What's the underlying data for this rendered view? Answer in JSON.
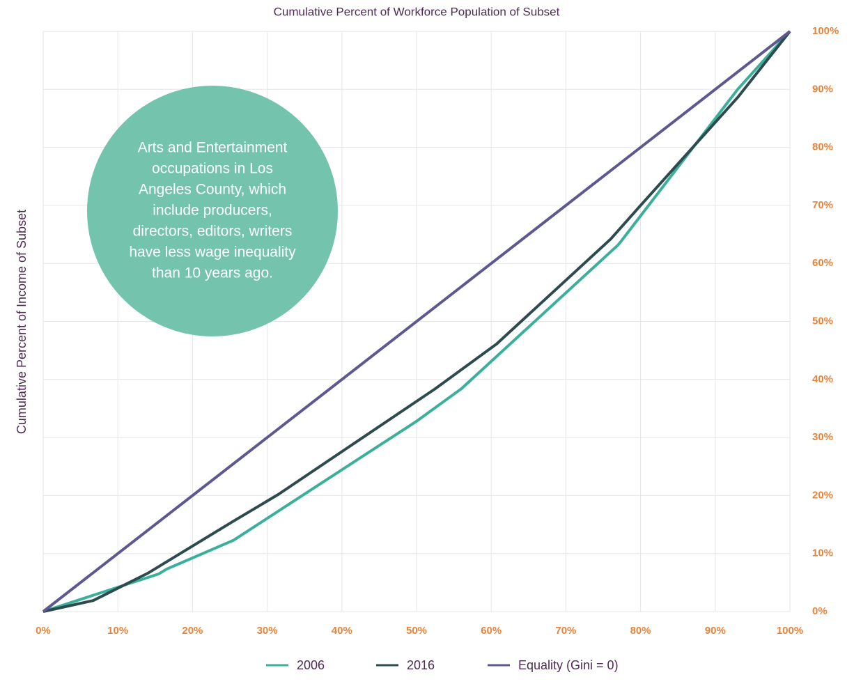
{
  "chart_data": {
    "type": "line",
    "title": "Cumulative Percent of Workforce Population of Subset",
    "y_label": "Cumulative Percent of Income of Subset",
    "annotation": [
      "Arts and Entertainment",
      "occupations in Los",
      "Angeles County, which",
      "include producers,",
      "directors, editors, writers",
      "have less wage inequality",
      "than 10 years ago."
    ],
    "annotation_color": "#74c3ad",
    "xlim": [
      0,
      100
    ],
    "ylim": [
      0,
      100
    ],
    "xticks": [
      {
        "value": 0,
        "label": "0%"
      },
      {
        "value": 10,
        "label": "10%"
      },
      {
        "value": 20,
        "label": "20%"
      },
      {
        "value": 30,
        "label": "30%"
      },
      {
        "value": 40,
        "label": "40%"
      },
      {
        "value": 50,
        "label": "50%"
      },
      {
        "value": 60,
        "label": "60%"
      },
      {
        "value": 70,
        "label": "70%"
      },
      {
        "value": 80,
        "label": "80%"
      },
      {
        "value": 90,
        "label": "90%"
      },
      {
        "value": 100,
        "label": "100%"
      }
    ],
    "yticks": [
      {
        "value": 0,
        "label": "0%"
      },
      {
        "value": 10,
        "label": "10%"
      },
      {
        "value": 20,
        "label": "20%"
      },
      {
        "value": 30,
        "label": "30%"
      },
      {
        "value": 40,
        "label": "40%"
      },
      {
        "value": 50,
        "label": "50%"
      },
      {
        "value": 60,
        "label": "60%"
      },
      {
        "value": 70,
        "label": "70%"
      },
      {
        "value": 80,
        "label": "80%"
      },
      {
        "value": 90,
        "label": "90%"
      },
      {
        "value": 100,
        "label": "100%"
      }
    ],
    "grid": true,
    "series": [
      {
        "name": "2006",
        "color": "#3aaf9a",
        "x": [
          0,
          15.5,
          16.5,
          25.5,
          50,
          56,
          77,
          77.5,
          93,
          100
        ],
        "values": [
          0,
          6.5,
          7.3,
          12.3,
          32.8,
          38.4,
          63.2,
          64,
          90,
          100
        ]
      },
      {
        "name": "2016",
        "color": "#2d4a4e",
        "x": [
          0,
          6.7,
          14,
          25.5,
          31.5,
          52.5,
          60.7,
          76,
          80,
          93,
          100
        ],
        "values": [
          0,
          1.9,
          6.6,
          15.6,
          20.2,
          38.4,
          46.1,
          64.2,
          70,
          88.6,
          100
        ]
      },
      {
        "name": "Equality (Gini = 0)",
        "color": "#5e5891",
        "x": [
          0,
          100
        ],
        "values": [
          0,
          100
        ]
      }
    ]
  }
}
